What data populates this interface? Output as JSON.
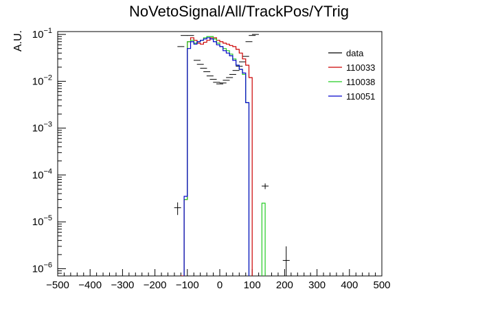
{
  "chart_data": {
    "type": "line",
    "title": "NoVetoSignal/All/TrackPos/YTrig",
    "ylabel": "A.U.",
    "xlabel": "",
    "xlim": [
      -500,
      500
    ],
    "ylim": [
      7e-07,
      0.115
    ],
    "yscale": "log",
    "x_ticks": [
      -500,
      -400,
      -300,
      -200,
      -100,
      0,
      100,
      200,
      300,
      400,
      500
    ],
    "x_tick_labels": [
      "−500",
      "−400",
      "−300",
      "−200",
      "−100",
      "0",
      "100",
      "200",
      "300",
      "400",
      "500"
    ],
    "y_ticks": [
      1e-06,
      1e-05,
      0.0001,
      0.001,
      0.01,
      0.1
    ],
    "y_tick_labels": [
      {
        "base": "10",
        "exp": "−6"
      },
      {
        "base": "10",
        "exp": "−5"
      },
      {
        "base": "10",
        "exp": "−4"
      },
      {
        "base": "10",
        "exp": "−3"
      },
      {
        "base": "10",
        "exp": "−2"
      },
      {
        "base": "10",
        "exp": "−1"
      }
    ],
    "legend_position": "top-right",
    "grid": false,
    "series": [
      {
        "name": "data",
        "style": "points",
        "color": "#000000",
        "points": [
          {
            "x": -130,
            "y": 2e-05,
            "ylo": 1.4e-05,
            "yhi": 2.6e-05
          },
          {
            "x": -120,
            "y": 0.055
          },
          {
            "x": -110,
            "y": 0.095
          },
          {
            "x": -90,
            "y": 0.095
          },
          {
            "x": -70,
            "y": 0.028
          },
          {
            "x": -60,
            "y": 0.023
          },
          {
            "x": -50,
            "y": 0.019
          },
          {
            "x": -40,
            "y": 0.016
          },
          {
            "x": -30,
            "y": 0.013
          },
          {
            "x": -20,
            "y": 0.011
          },
          {
            "x": -10,
            "y": 0.0095
          },
          {
            "x": 0,
            "y": 0.0088
          },
          {
            "x": 10,
            "y": 0.0092
          },
          {
            "x": 20,
            "y": 0.0105
          },
          {
            "x": 30,
            "y": 0.012
          },
          {
            "x": 40,
            "y": 0.014
          },
          {
            "x": 50,
            "y": 0.017
          },
          {
            "x": 60,
            "y": 0.021
          },
          {
            "x": 70,
            "y": 0.026
          },
          {
            "x": 80,
            "y": 0.034
          },
          {
            "x": 90,
            "y": 0.07
          },
          {
            "x": 100,
            "y": 0.095
          },
          {
            "x": 110,
            "y": 0.1
          },
          {
            "x": 140,
            "y": 5.8e-05,
            "ylo": 5e-05,
            "yhi": 6.6e-05
          },
          {
            "x": 205,
            "y": 1.5e-06,
            "ylo": 7e-07,
            "yhi": 3e-06
          }
        ]
      },
      {
        "name": "110033",
        "style": "step",
        "color": "#cc0000",
        "bin_width": 10,
        "bins": [
          {
            "x": -120,
            "y": 7e-07
          },
          {
            "x": -110,
            "y": 3e-05
          },
          {
            "x": -100,
            "y": 0.07
          },
          {
            "x": -90,
            "y": 0.085
          },
          {
            "x": -80,
            "y": 0.075
          },
          {
            "x": -70,
            "y": 0.065
          },
          {
            "x": -60,
            "y": 0.062
          },
          {
            "x": -50,
            "y": 0.068
          },
          {
            "x": -40,
            "y": 0.075
          },
          {
            "x": -30,
            "y": 0.085
          },
          {
            "x": -20,
            "y": 0.085
          },
          {
            "x": -10,
            "y": 0.075
          },
          {
            "x": 0,
            "y": 0.07
          },
          {
            "x": 10,
            "y": 0.065
          },
          {
            "x": 20,
            "y": 0.062
          },
          {
            "x": 30,
            "y": 0.058
          },
          {
            "x": 40,
            "y": 0.055
          },
          {
            "x": 50,
            "y": 0.048
          },
          {
            "x": 60,
            "y": 0.04
          },
          {
            "x": 70,
            "y": 0.03
          },
          {
            "x": 80,
            "y": 0.022
          },
          {
            "x": 90,
            "y": 0.012
          }
        ]
      },
      {
        "name": "110038",
        "style": "step",
        "color": "#22cc22",
        "bin_width": 10,
        "bins": [
          {
            "x": -110,
            "y": 3e-05
          },
          {
            "x": -100,
            "y": 0.07
          },
          {
            "x": -90,
            "y": 0.075
          },
          {
            "x": -80,
            "y": 0.065
          },
          {
            "x": -70,
            "y": 0.07
          },
          {
            "x": -60,
            "y": 0.075
          },
          {
            "x": -50,
            "y": 0.085
          },
          {
            "x": -40,
            "y": 0.09
          },
          {
            "x": -30,
            "y": 0.09
          },
          {
            "x": -20,
            "y": 0.08
          },
          {
            "x": -10,
            "y": 0.065
          },
          {
            "x": 0,
            "y": 0.055
          },
          {
            "x": 10,
            "y": 0.05
          },
          {
            "x": 20,
            "y": 0.045
          },
          {
            "x": 30,
            "y": 0.038
          },
          {
            "x": 40,
            "y": 0.03
          },
          {
            "x": 50,
            "y": 0.022
          },
          {
            "x": 60,
            "y": 0.018
          },
          {
            "x": 70,
            "y": 0.014
          },
          {
            "x": 80,
            "y": 0.0035
          },
          {
            "x": 130,
            "y": 2.5e-05
          }
        ]
      },
      {
        "name": "110051",
        "style": "step",
        "color": "#0000cc",
        "bin_width": 10,
        "bins": [
          {
            "x": -110,
            "y": 3.5e-05
          },
          {
            "x": -100,
            "y": 0.05
          },
          {
            "x": -90,
            "y": 0.07
          },
          {
            "x": -80,
            "y": 0.062
          },
          {
            "x": -70,
            "y": 0.07
          },
          {
            "x": -60,
            "y": 0.075
          },
          {
            "x": -50,
            "y": 0.08
          },
          {
            "x": -40,
            "y": 0.085
          },
          {
            "x": -30,
            "y": 0.08
          },
          {
            "x": -20,
            "y": 0.07
          },
          {
            "x": -10,
            "y": 0.06
          },
          {
            "x": 0,
            "y": 0.055
          },
          {
            "x": 10,
            "y": 0.045
          },
          {
            "x": 20,
            "y": 0.04
          },
          {
            "x": 30,
            "y": 0.035
          },
          {
            "x": 40,
            "y": 0.028
          },
          {
            "x": 50,
            "y": 0.022
          },
          {
            "x": 60,
            "y": 0.018
          },
          {
            "x": 70,
            "y": 0.015
          },
          {
            "x": 80,
            "y": 0.0035
          }
        ]
      }
    ]
  }
}
